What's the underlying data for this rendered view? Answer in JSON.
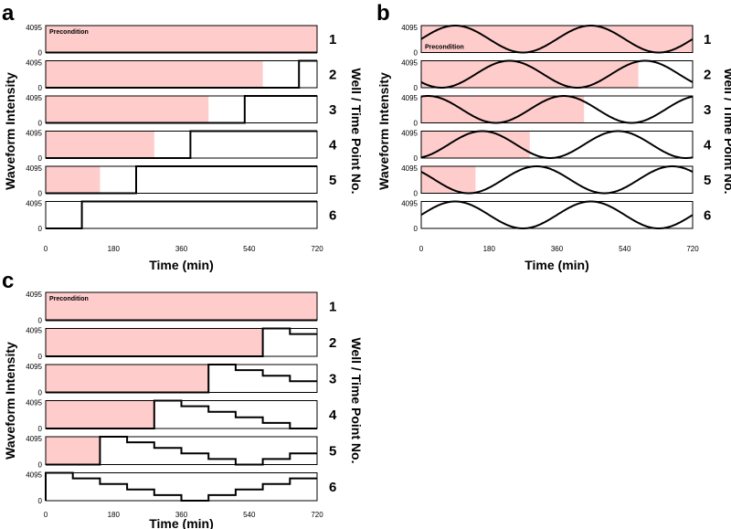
{
  "figure": {
    "x_axis_label": "Time (min)",
    "y_axis_label": "Waveform Intensity",
    "right_axis_label": "Well / Time Point No.",
    "precondition_label": "Precondition",
    "y_tick_labels": [
      "0",
      "4095"
    ],
    "x_tick_labels": [
      "0",
      "180",
      "360",
      "540",
      "720"
    ]
  },
  "colors": {
    "precondition_fill": "#ffcccc",
    "line": "#000000"
  },
  "chart_data": [
    {
      "panel": "a",
      "type": "line",
      "xlabel": "Time (min)",
      "ylabel": "Waveform Intensity",
      "xlim": [
        0,
        720
      ],
      "ylim": [
        0,
        4095
      ],
      "waveform": "step",
      "wells": [
        {
          "row": "1",
          "precondition_end": 720,
          "step_time": null
        },
        {
          "row": "2",
          "precondition_end": 576,
          "step_time": 672
        },
        {
          "row": "3",
          "precondition_end": 432,
          "step_time": 528
        },
        {
          "row": "4",
          "precondition_end": 288,
          "step_time": 384
        },
        {
          "row": "5",
          "precondition_end": 144,
          "step_time": 240
        },
        {
          "row": "6",
          "precondition_end": 0,
          "step_time": 96
        }
      ]
    },
    {
      "panel": "b",
      "type": "line",
      "xlabel": "Time (min)",
      "ylabel": "Waveform Intensity",
      "xlim": [
        0,
        720
      ],
      "ylim": [
        0,
        4095
      ],
      "waveform": "sine",
      "period_min": 360,
      "phase_peak_min": 90,
      "wells": [
        {
          "row": "1",
          "precondition_end": 720,
          "shift_min": 720
        },
        {
          "row": "2",
          "precondition_end": 576,
          "shift_min": 576
        },
        {
          "row": "3",
          "precondition_end": 432,
          "shift_min": 432
        },
        {
          "row": "4",
          "precondition_end": 288,
          "shift_min": 288
        },
        {
          "row": "5",
          "precondition_end": 144,
          "shift_min": 144
        },
        {
          "row": "6",
          "precondition_end": 0,
          "shift_min": 0
        }
      ]
    },
    {
      "panel": "c",
      "type": "line",
      "xlabel": "Time (min)",
      "ylabel": "Waveform Intensity",
      "xlim": [
        0,
        720
      ],
      "ylim": [
        0,
        4095
      ],
      "waveform": "staircase",
      "step_duration_min": 72,
      "levels": [
        4095,
        3276,
        2457,
        1638,
        819,
        0,
        819,
        1638,
        2457,
        3276
      ],
      "wells": [
        {
          "row": "1",
          "precondition_end": 720
        },
        {
          "row": "2",
          "precondition_end": 576
        },
        {
          "row": "3",
          "precondition_end": 432
        },
        {
          "row": "4",
          "precondition_end": 288
        },
        {
          "row": "5",
          "precondition_end": 144
        },
        {
          "row": "6",
          "precondition_end": 0
        }
      ]
    }
  ]
}
